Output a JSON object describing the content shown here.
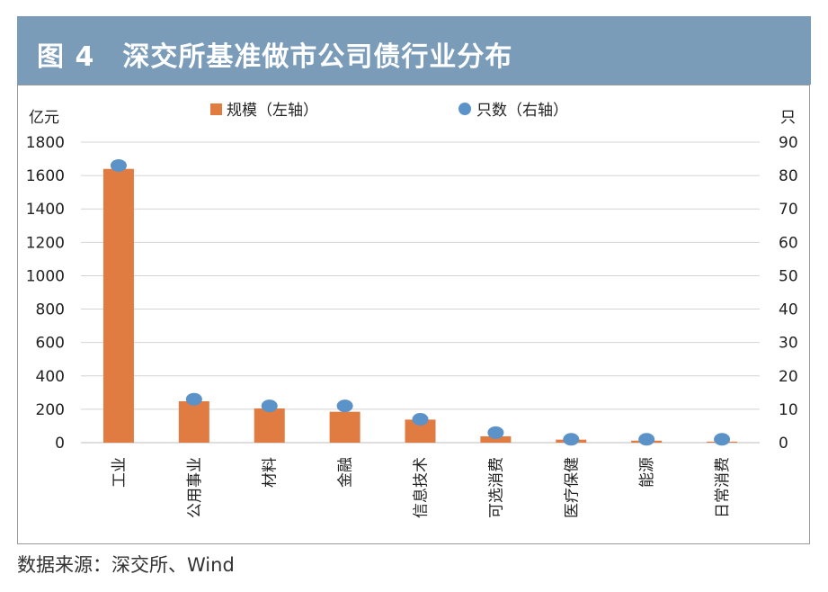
{
  "figure_title": "图 4　深交所基准做市公司债行业分布",
  "source": "数据来源：深交所、Wind",
  "colors": {
    "bar": "#e07b42",
    "dot": "#5b93c9",
    "title_bg": "#7a9cb9"
  },
  "chart_data": {
    "type": "bar",
    "categories": [
      "工业",
      "公用事业",
      "材料",
      "金融",
      "信息技术",
      "可选消费",
      "医疗保健",
      "能源",
      "日常消费"
    ],
    "series": [
      {
        "name": "规模（左轴）",
        "type": "bar",
        "axis": "left",
        "values": [
          1640,
          248,
          205,
          185,
          138,
          38,
          18,
          12,
          6
        ]
      },
      {
        "name": "只数（右轴）",
        "type": "scatter",
        "axis": "right",
        "values": [
          83,
          13,
          11,
          11,
          7,
          3,
          1,
          1,
          1
        ]
      }
    ],
    "y_left": {
      "label": "亿元",
      "ylim": [
        0,
        1800
      ],
      "ticks": [
        0,
        200,
        400,
        600,
        800,
        1000,
        1200,
        1400,
        1600,
        1800
      ]
    },
    "y_right": {
      "label": "只",
      "ylim": [
        0,
        90
      ],
      "ticks": [
        0,
        10,
        20,
        30,
        40,
        50,
        60,
        70,
        80,
        90
      ]
    },
    "grid": true,
    "legend": "top-center"
  }
}
